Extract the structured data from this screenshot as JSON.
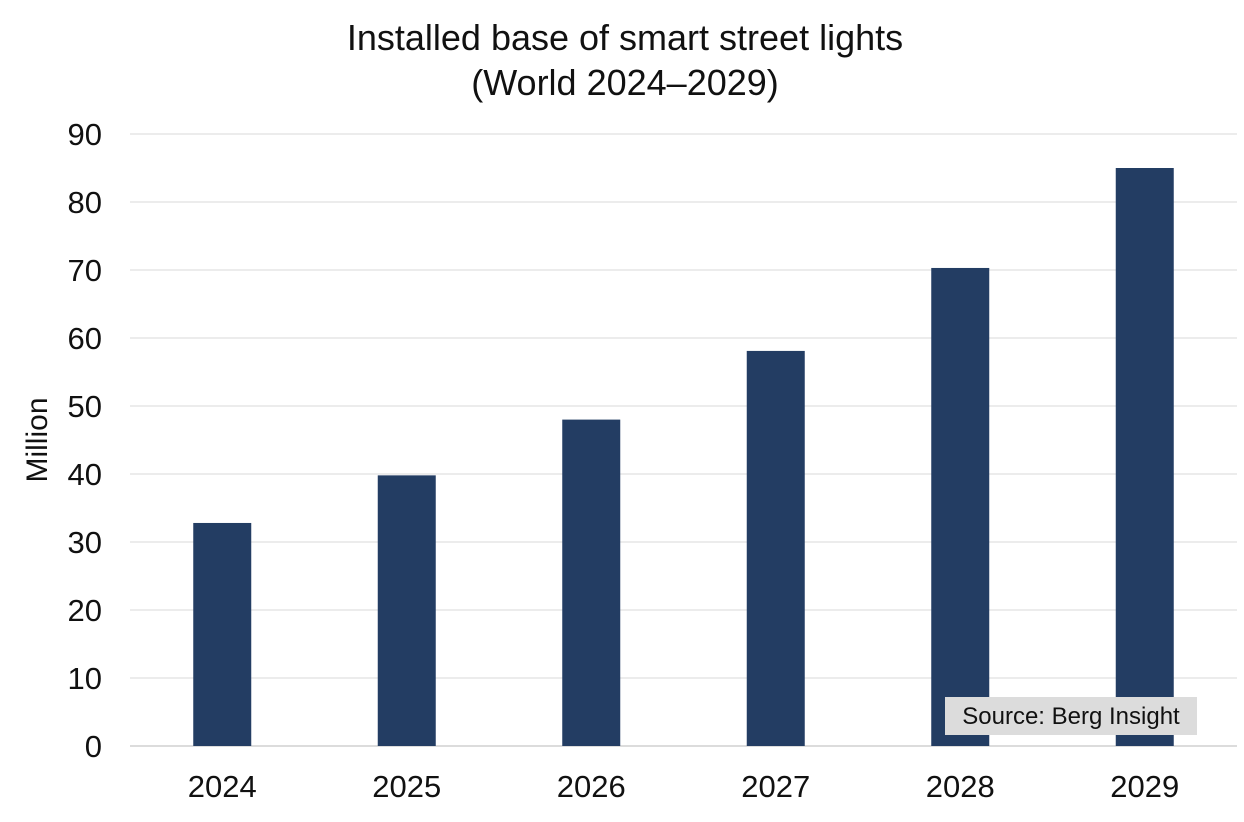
{
  "chart_data": {
    "type": "bar",
    "title": "Installed base of smart street lights",
    "subtitle": "(World 2024–2029)",
    "xlabel": "",
    "ylabel": "Million",
    "categories": [
      "2024",
      "2025",
      "2026",
      "2027",
      "2028",
      "2029"
    ],
    "values": [
      32.8,
      39.8,
      48.0,
      58.1,
      70.3,
      85.0
    ],
    "ylim": [
      0,
      90
    ],
    "yticks": [
      0,
      10,
      20,
      30,
      40,
      50,
      60,
      70,
      80,
      90
    ],
    "grid": true,
    "legend": "none",
    "bar_color": "#233d63",
    "grid_color": "#e6e6e6",
    "annotation": "Source: Berg Insight"
  }
}
